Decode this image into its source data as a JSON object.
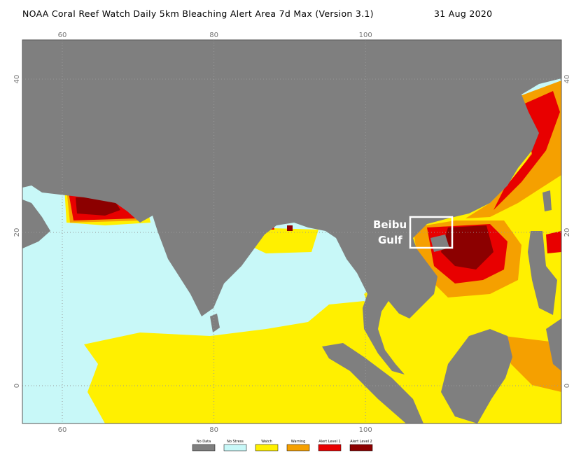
{
  "title": "NOAA Coral Reef Watch Daily 5km Bleaching Alert Area 7d Max (Version 3.1)",
  "date": "31 Aug 2020",
  "map": {
    "lon_ticks": [
      60,
      80,
      100
    ],
    "lat_ticks": [
      40,
      20,
      0
    ],
    "annotation": {
      "lines": [
        "Beibu",
        "Gulf"
      ]
    }
  },
  "legend": [
    {
      "label": "No Data",
      "color": "#7f7f7f"
    },
    {
      "label": "No Stress",
      "color": "#c8f8f8"
    },
    {
      "label": "Watch",
      "color": "#fff000"
    },
    {
      "label": "Warning",
      "color": "#f5a000"
    },
    {
      "label": "Alert Level 1",
      "color": "#e80000"
    },
    {
      "label": "Alert Level 2",
      "color": "#8c0000"
    }
  ]
}
